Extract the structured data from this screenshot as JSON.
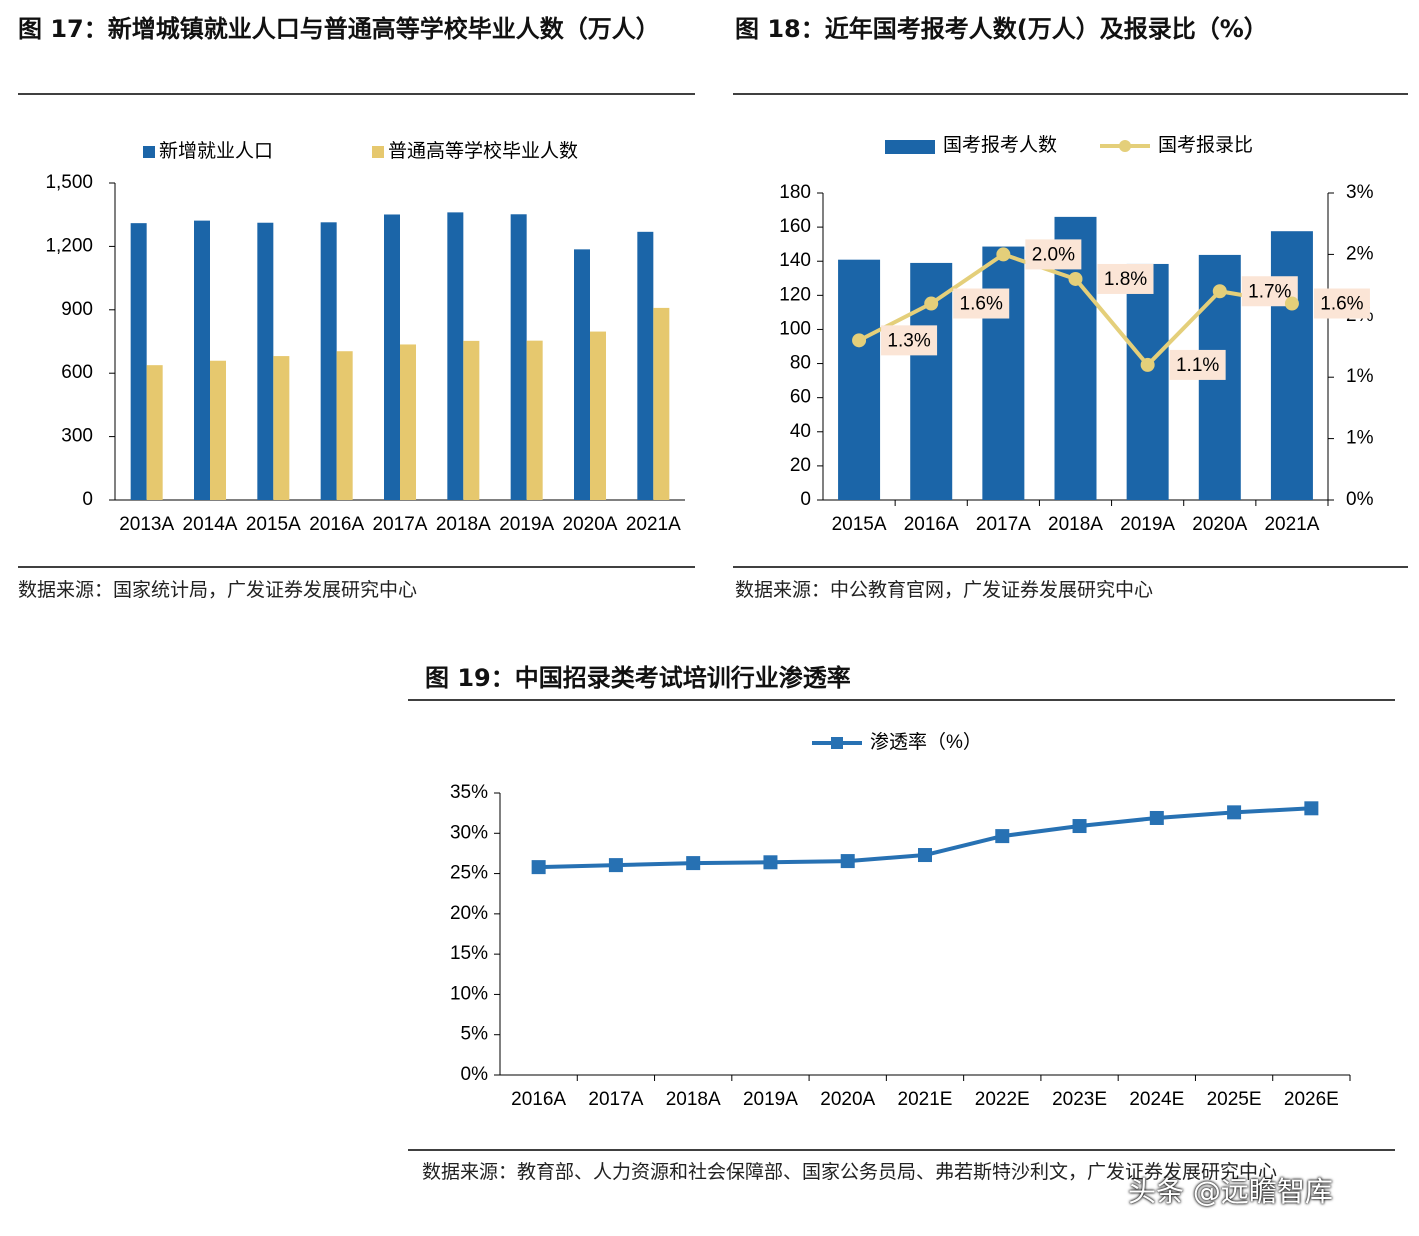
{
  "chart_data": [
    {
      "type": "bar",
      "title": "图 17：新增城镇就业人口与普通高等学校毕业人数（万人）",
      "categories": [
        "2013A",
        "2014A",
        "2015A",
        "2016A",
        "2017A",
        "2018A",
        "2019A",
        "2020A",
        "2021A"
      ],
      "series": [
        {
          "name": "新增就业人口",
          "color": "#1b65a8",
          "values": [
            1310,
            1322,
            1312,
            1314,
            1351,
            1361,
            1352,
            1186,
            1269
          ]
        },
        {
          "name": "普通高等学校毕业人数",
          "color": "#e6c86e",
          "values": [
            638,
            659,
            681,
            704,
            736,
            753,
            754,
            797,
            909
          ]
        }
      ],
      "ylim": [
        0,
        1500
      ],
      "yticks": [
        0,
        300,
        600,
        900,
        {
          "value": 1200,
          "label": "1,200"
        },
        {
          "value": 1500,
          "label": "1,500"
        }
      ],
      "source": "数据来源：国家统计局，广发证券发展研究中心"
    },
    {
      "type": "bar",
      "title": "图 18：近年国考报考人数(万人）及报录比（%）",
      "categories": [
        "2015A",
        "2016A",
        "2017A",
        "2018A",
        "2019A",
        "2020A",
        "2021A"
      ],
      "series": [
        {
          "name": "国考报考人数",
          "color": "#1b65a8",
          "values": [
            140.9,
            139,
            148.6,
            166,
            138.4,
            143.7,
            157.6
          ]
        },
        {
          "name": "国考报录比",
          "type": "line",
          "axis": "y2",
          "color": "#e4cf7a",
          "values": [
            1.3,
            1.6,
            2.0,
            1.8,
            1.1,
            1.7,
            1.6
          ],
          "value_labels": [
            "1.3%",
            "1.6%",
            "2.0%",
            "1.8%",
            "1.1%",
            "1.7%",
            "1.6%"
          ]
        }
      ],
      "ylim": [
        0,
        180
      ],
      "yticks": [
        0,
        20,
        40,
        60,
        80,
        100,
        120,
        140,
        160,
        180
      ],
      "y2lim": [
        0,
        2.5
      ],
      "y2ticks": [
        {
          "value": 0,
          "label": "0%"
        },
        {
          "value": 0.5,
          "label": "1%"
        },
        {
          "value": 1,
          "label": "1%"
        },
        {
          "value": 1.5,
          "label": "2%"
        },
        {
          "value": 2,
          "label": "2%"
        },
        {
          "value": 2.5,
          "label": "3%"
        }
      ],
      "source": "数据来源：中公教育官网，广发证券发展研究中心"
    },
    {
      "type": "line",
      "title": "图 19：中国招录类考试培训行业渗透率",
      "categories": [
        "2016A",
        "2017A",
        "2018A",
        "2019A",
        "2020A",
        "2021E",
        "2022E",
        "2023E",
        "2024E",
        "2025E",
        "2026E"
      ],
      "series": [
        {
          "name": "渗透率（%）",
          "color": "#2771b3",
          "values": [
            25.8,
            26.05,
            26.3,
            26.4,
            26.55,
            27.3,
            29.65,
            30.9,
            31.9,
            32.6,
            33.1
          ]
        }
      ],
      "ylim": [
        0,
        35
      ],
      "yticks": [
        {
          "value": 0,
          "label": "0%"
        },
        {
          "value": 5,
          "label": "5%"
        },
        {
          "value": 10,
          "label": "10%"
        },
        {
          "value": 15,
          "label": "15%"
        },
        {
          "value": 20,
          "label": "20%"
        },
        {
          "value": 25,
          "label": "25%"
        },
        {
          "value": 30,
          "label": "30%"
        },
        {
          "value": 35,
          "label": "35%"
        }
      ],
      "source": "数据来源：教育部、人力资源和社会保障部、国家公务员局、弗若斯特沙利文，广发证券发展研究中心"
    }
  ],
  "watermark": "头条 @远瞻智库"
}
